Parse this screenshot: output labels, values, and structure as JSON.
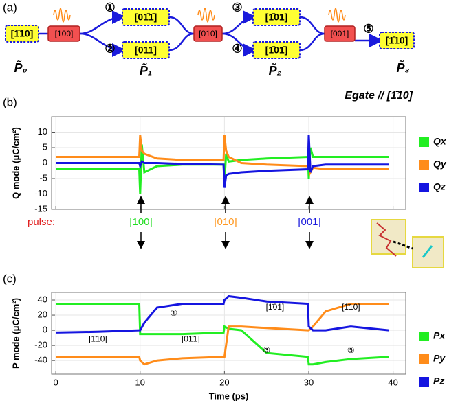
{
  "panel_labels": [
    "(a)",
    "(b)",
    "(c)"
  ],
  "diagram": {
    "nodes": [
      "[1̄10]",
      "[100]",
      "[01̄1̄]",
      "[011]",
      "[010]",
      "[1̄01]",
      "[1̄01̄]",
      "[001]",
      "[1̄10]"
    ],
    "steps": [
      "①",
      "②",
      "③",
      "④",
      "⑤"
    ],
    "states": [
      "P̃₀",
      "P̃₁",
      "P̃₂",
      "P̃₃"
    ],
    "field": "Egate // [1̄10]"
  },
  "pulse_row": {
    "label": "pulse:",
    "pulses": [
      "[100]",
      "[010]",
      "[001]"
    ],
    "colors": [
      "#22dd22",
      "#ff9922",
      "#1a1adc"
    ]
  },
  "chart_data": [
    {
      "type": "line",
      "ylabel": "Q mode (μC/cm²)",
      "x": [
        0,
        5,
        9.9,
        10,
        10.2,
        10.5,
        12,
        15,
        19.9,
        20,
        20.2,
        20.5,
        22,
        25,
        29.9,
        30,
        30.2,
        30.5,
        32,
        35,
        39.5
      ],
      "series": [
        {
          "name": "Qx",
          "color": "#22ee22",
          "values": [
            -2,
            -2,
            -2,
            -10,
            6,
            -3,
            -1,
            -0.5,
            -0.5,
            -6,
            3,
            0.5,
            1,
            1.5,
            2,
            -5,
            5,
            2,
            2,
            2,
            2
          ]
        },
        {
          "name": "Qy",
          "color": "#ff8c1a",
          "values": [
            2,
            2,
            2,
            9,
            4,
            3,
            1.5,
            1,
            1,
            9,
            4,
            2,
            0,
            -0.5,
            -1,
            7,
            -3,
            -1.5,
            -2,
            -2,
            -2
          ]
        },
        {
          "name": "Qz",
          "color": "#1515e0",
          "values": [
            0,
            0,
            0,
            -1,
            0.5,
            0,
            0,
            -0.3,
            -0.5,
            -8,
            -4,
            -3.5,
            -3,
            -2.5,
            -2,
            9,
            -3,
            -1,
            -0.5,
            -0.5,
            -0.5
          ]
        }
      ],
      "xlim": [
        -0.5,
        41.5
      ],
      "ylim": [
        -15,
        15
      ],
      "yticks": [
        -15,
        -10,
        -5,
        0,
        5,
        10
      ],
      "xticks": [
        0,
        10,
        20,
        30,
        40
      ],
      "grid": true
    },
    {
      "type": "line",
      "ylabel": "P mode (μC/cm²)",
      "xlabel": "Time (ps)",
      "x": [
        0,
        5,
        9.9,
        10,
        10.5,
        12,
        15,
        19.9,
        20,
        20.5,
        22,
        25,
        29.9,
        30,
        30.5,
        32,
        35,
        39.5
      ],
      "series": [
        {
          "name": "Px",
          "color": "#22ee22",
          "values": [
            35,
            35,
            35,
            -5,
            -5,
            -5,
            -5,
            -3,
            5,
            2,
            0,
            -30,
            -35,
            -45,
            -45,
            -42,
            -38,
            -35
          ]
        },
        {
          "name": "Py",
          "color": "#ff8c1a",
          "values": [
            -35,
            -35,
            -35,
            -40,
            -45,
            -40,
            -37,
            -35,
            -35,
            5,
            5,
            3,
            0,
            0,
            5,
            25,
            35,
            35
          ]
        },
        {
          "name": "Pz",
          "color": "#1515e0",
          "values": [
            -3,
            -2,
            0,
            0,
            10,
            30,
            35,
            35,
            40,
            45,
            43,
            38,
            35,
            5,
            0,
            0,
            5,
            0
          ]
        }
      ],
      "annotations": [
        "[1̄10]",
        "①",
        "[01̄1]",
        "[1̄01]",
        "③",
        "[1̄10]",
        "⑤"
      ],
      "xlim": [
        -0.5,
        41.5
      ],
      "ylim": [
        -58,
        50
      ],
      "yticks": [
        -40,
        -20,
        0,
        20,
        40
      ],
      "xticks": [
        0,
        10,
        20,
        30,
        40
      ],
      "grid": true
    }
  ]
}
